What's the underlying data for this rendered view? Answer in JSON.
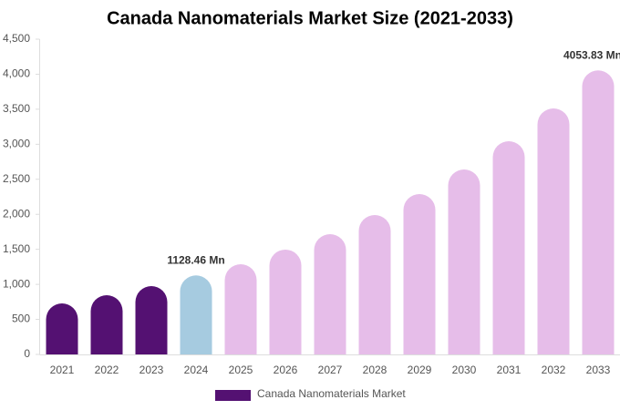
{
  "chart_data": {
    "type": "bar",
    "title": "Canada Nanomaterials Market Size (2021-2033)",
    "categories": [
      "2021",
      "2022",
      "2023",
      "2024",
      "2025",
      "2026",
      "2027",
      "2028",
      "2029",
      "2030",
      "2031",
      "2032",
      "2033"
    ],
    "series": [
      {
        "name": "Canada Nanomaterials Market",
        "color": "#541172",
        "values": [
          728,
          845,
          975,
          1128.46,
          1287,
          1496,
          1717,
          1990,
          2289,
          2640,
          3043,
          3511,
          4053.83
        ],
        "bar_colors": [
          "#541172",
          "#541172",
          "#541172",
          "#a6cbe0",
          "#e6bde9",
          "#e6bde9",
          "#e6bde9",
          "#e6bde9",
          "#e6bde9",
          "#e6bde9",
          "#e6bde9",
          "#e6bde9",
          "#e6bde9"
        ],
        "value_labels": [
          null,
          null,
          null,
          "1128.46 Mn",
          null,
          null,
          null,
          null,
          null,
          null,
          null,
          null,
          "4053.83 Mn"
        ]
      }
    ],
    "ylim": [
      0,
      4500
    ],
    "yticks": [
      0,
      500,
      {
        "value": 1000,
        "label": "1,000"
      },
      {
        "value": 1500,
        "label": "1,500"
      },
      {
        "value": 2000,
        "label": "2,000"
      },
      {
        "value": 2500,
        "label": "2,500"
      },
      {
        "value": 3000,
        "label": "3,000"
      },
      {
        "value": 3500,
        "label": "3,500"
      },
      {
        "value": 4000,
        "label": "4,000"
      },
      {
        "value": 4500,
        "label": "4,500"
      }
    ],
    "grid": false
  }
}
